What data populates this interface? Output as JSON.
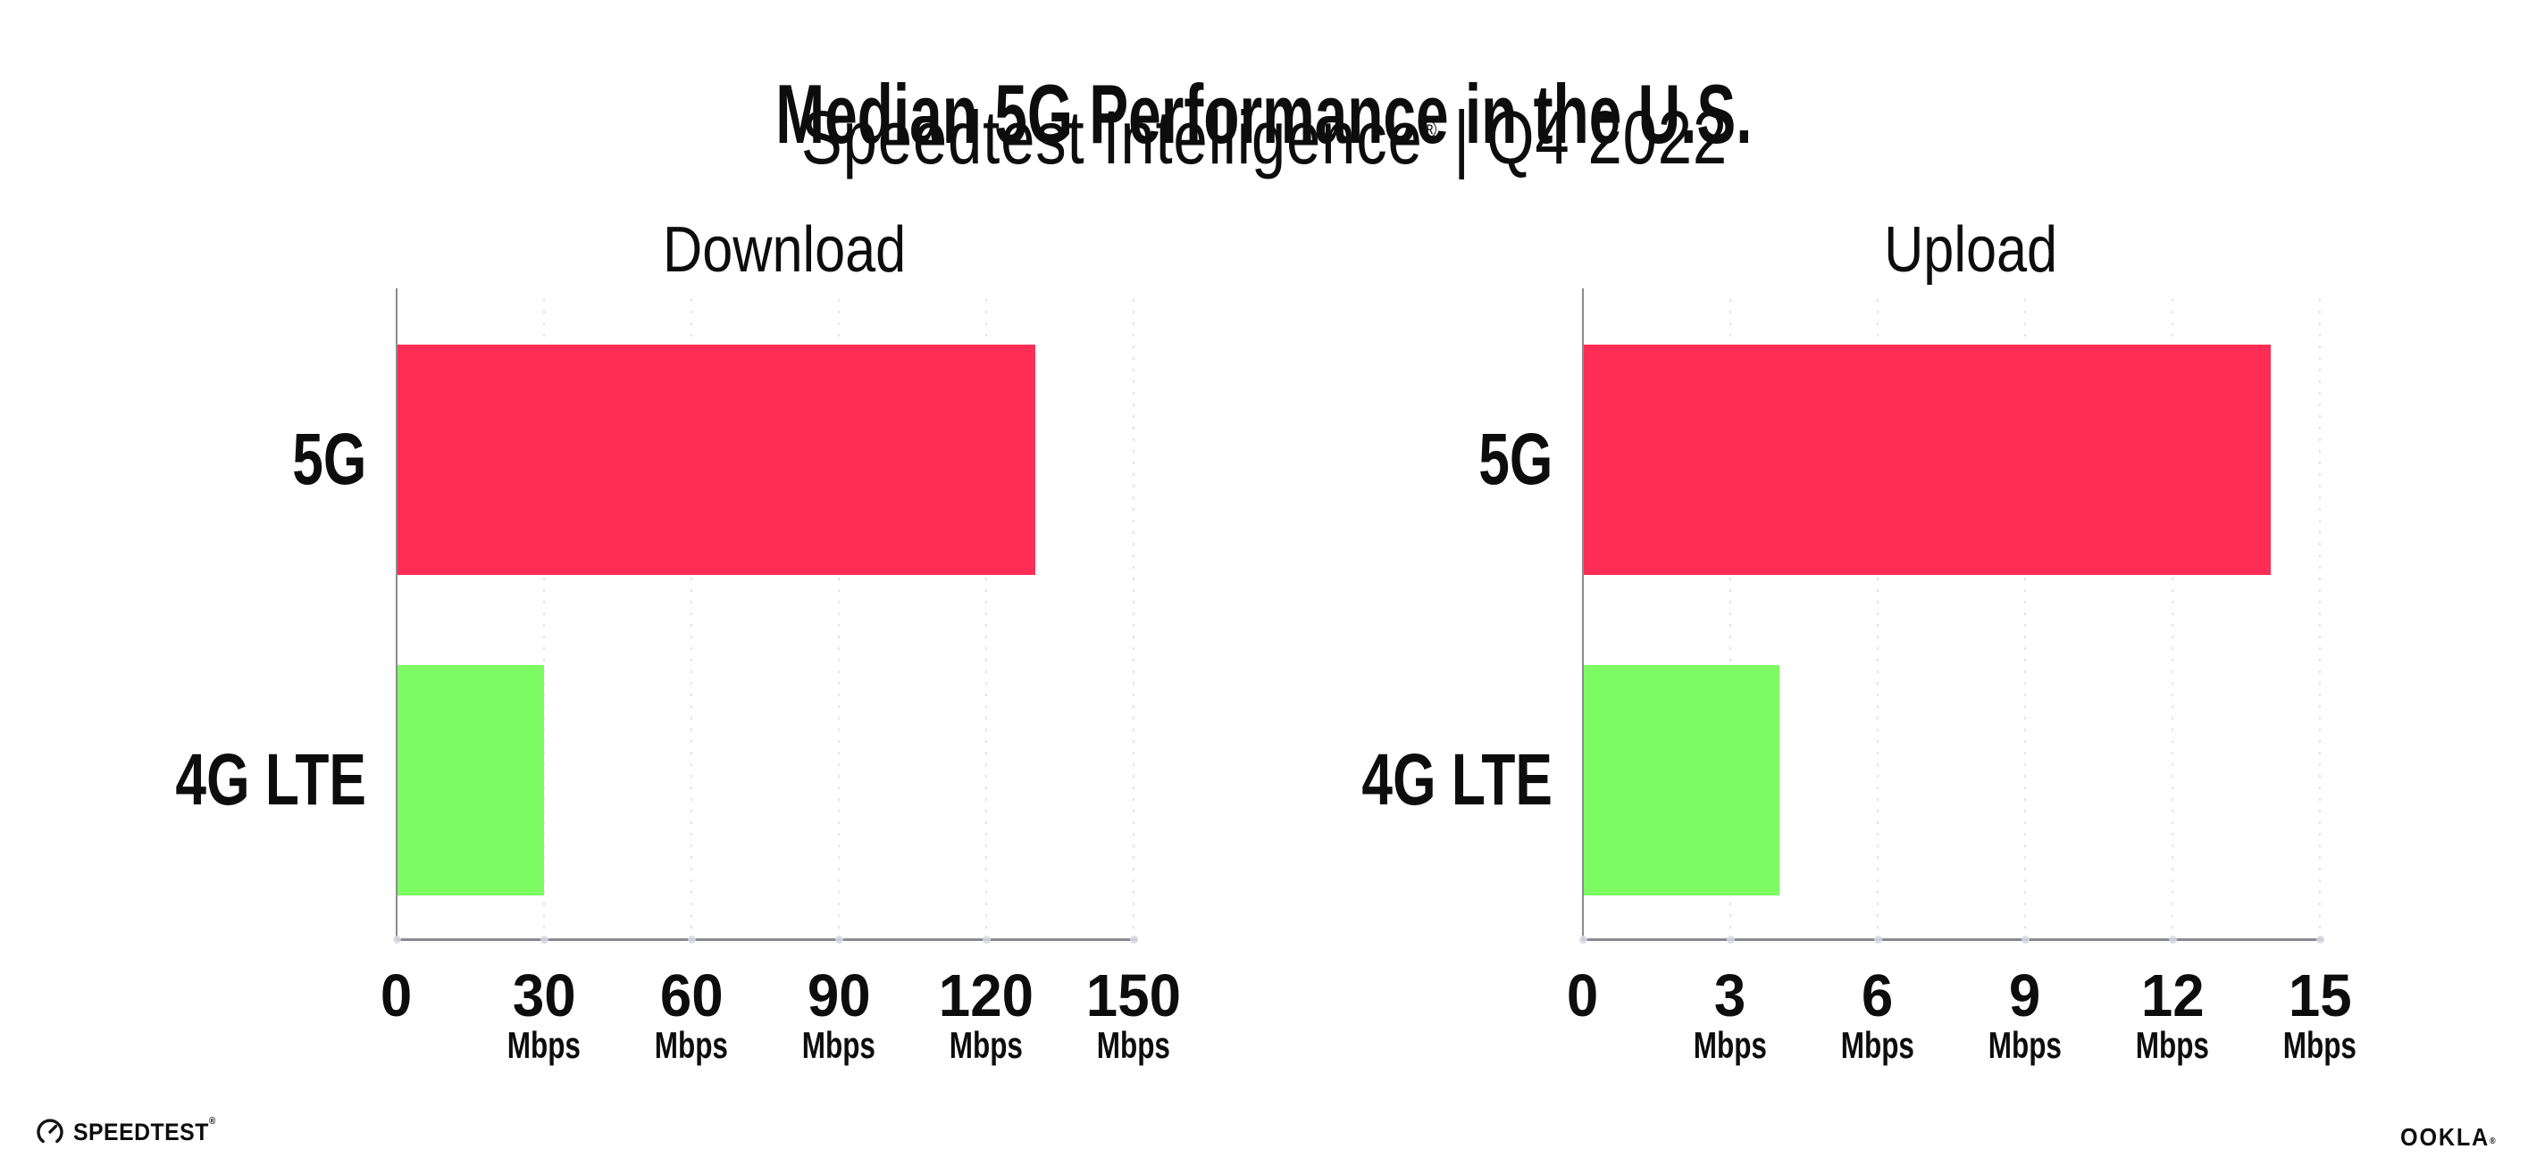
{
  "header": {
    "title": "Median 5G Performance in the U.S.",
    "product": "Speedtest Intelligence",
    "registered_mark": "®",
    "separator": "|",
    "period": "Q4 2022"
  },
  "chart_data": [
    {
      "type": "bar",
      "orientation": "horizontal",
      "title": "Download",
      "categories": [
        "5G",
        "4G LTE"
      ],
      "values": [
        130,
        30
      ],
      "unit": "Mbps",
      "xlabel": "",
      "ylabel": "",
      "xlim": [
        0,
        150
      ],
      "xticks": [
        0,
        30,
        60,
        90,
        120,
        150
      ],
      "bar_colors": [
        "#FE2D55",
        "#7DFB63"
      ],
      "grid": "vertical-dotted",
      "legend": "none"
    },
    {
      "type": "bar",
      "orientation": "horizontal",
      "title": "Upload",
      "categories": [
        "5G",
        "4G LTE"
      ],
      "values": [
        14,
        4
      ],
      "unit": "Mbps",
      "xlabel": "",
      "ylabel": "",
      "xlim": [
        0,
        15
      ],
      "xticks": [
        0,
        3,
        6,
        9,
        12,
        15
      ],
      "bar_colors": [
        "#FE2D55",
        "#7DFB63"
      ],
      "grid": "vertical-dotted",
      "legend": "none"
    }
  ],
  "footer": {
    "left_logo_text": "SPEEDTEST",
    "left_logo_mark": "®",
    "left_logo_icon": "speedometer-gauge-icon",
    "right_logo_text": "OOKLA",
    "right_logo_mark": "®"
  },
  "colors": {
    "bar_5g": "#FE2D55",
    "bar_4g_lte": "#7DFB63",
    "axis": "#8A8A92",
    "gridline": "#E2E2EC",
    "tick_dot": "#D8D8E2",
    "text": "#0D0D0D",
    "background": "#FFFFFF"
  }
}
